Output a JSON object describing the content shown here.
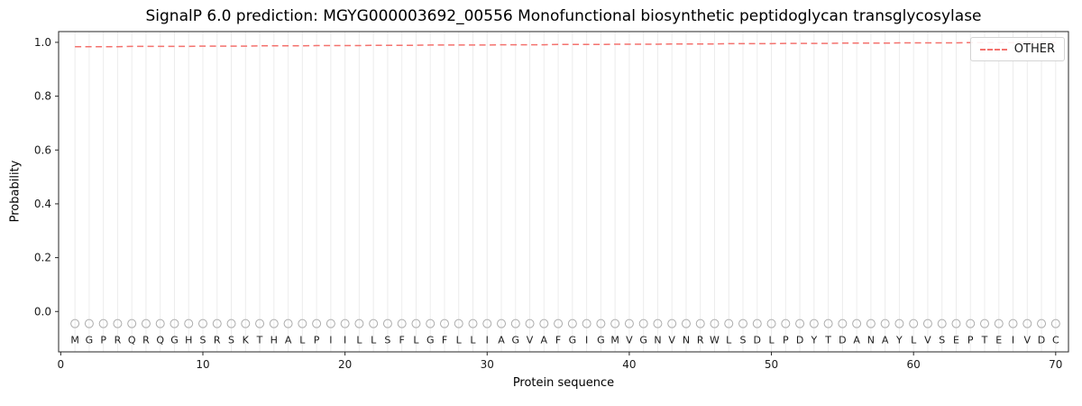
{
  "chart_data": {
    "type": "line",
    "title": "SignalP 6.0 prediction: MGYG000003692_00556 Monofunctional biosynthetic peptidoglycan transglycosylase",
    "xlabel": "Protein sequence",
    "ylabel": "Probability",
    "xlim": [
      -0.15,
      70.9
    ],
    "ylim": [
      -0.15,
      1.04
    ],
    "x_ticks": [
      0,
      10,
      20,
      30,
      40,
      50,
      60,
      70
    ],
    "y_ticks": [
      0.0,
      0.2,
      0.4,
      0.6,
      0.8,
      1.0
    ],
    "grid": "vertical-line-per-residue",
    "legend": {
      "label": "OTHER",
      "position": "upper right"
    },
    "colors": {
      "series_red": "#f4726e",
      "grid": "#ececec",
      "spine": "#262626",
      "tick_text": "#1a1a1a",
      "marker": "#adadad",
      "letter": "#1a1a1a"
    },
    "sequence": [
      "M",
      "G",
      "P",
      "R",
      "Q",
      "R",
      "Q",
      "G",
      "H",
      "S",
      "R",
      "S",
      "K",
      "T",
      "H",
      "A",
      "L",
      "P",
      "I",
      "I",
      "L",
      "L",
      "S",
      "F",
      "L",
      "G",
      "F",
      "L",
      "L",
      "I",
      "A",
      "G",
      "V",
      "A",
      "F",
      "G",
      "I",
      "G",
      "M",
      "V",
      "G",
      "N",
      "V",
      "N",
      "R",
      "W",
      "L",
      "S",
      "D",
      "L",
      "P",
      "D",
      "Y",
      "T",
      "D",
      "A",
      "N",
      "A",
      "Y",
      "L",
      "V",
      "S",
      "E",
      "P",
      "T",
      "E",
      "I",
      "V",
      "D",
      "C"
    ],
    "residue_markers": {
      "symbol": "open-circle",
      "y": -0.045
    },
    "sequence_label_y": -0.105,
    "series": [
      {
        "name": "OTHER",
        "style": "dashed",
        "color": "#f4726e",
        "x": [
          1,
          2,
          3,
          4,
          5,
          6,
          7,
          8,
          9,
          10,
          11,
          12,
          13,
          14,
          15,
          16,
          17,
          18,
          19,
          20,
          21,
          22,
          23,
          24,
          25,
          26,
          27,
          28,
          29,
          30,
          31,
          32,
          33,
          34,
          35,
          36,
          37,
          38,
          39,
          40,
          41,
          42,
          43,
          44,
          45,
          46,
          47,
          48,
          49,
          50,
          51,
          52,
          53,
          54,
          55,
          56,
          57,
          58,
          59,
          60,
          61,
          62,
          63,
          64,
          65,
          66,
          67,
          68,
          69,
          70
        ],
        "values": [
          0.984,
          0.984,
          0.984,
          0.984,
          0.985,
          0.985,
          0.985,
          0.985,
          0.985,
          0.986,
          0.986,
          0.986,
          0.986,
          0.987,
          0.987,
          0.987,
          0.987,
          0.988,
          0.988,
          0.988,
          0.988,
          0.989,
          0.989,
          0.989,
          0.989,
          0.99,
          0.99,
          0.99,
          0.99,
          0.99,
          0.991,
          0.991,
          0.991,
          0.991,
          0.992,
          0.992,
          0.992,
          0.992,
          0.993,
          0.993,
          0.993,
          0.993,
          0.994,
          0.994,
          0.994,
          0.994,
          0.995,
          0.995,
          0.995,
          0.995,
          0.996,
          0.996,
          0.996,
          0.996,
          0.997,
          0.997,
          0.997,
          0.997,
          0.998,
          0.998,
          0.998,
          0.998,
          0.998,
          0.999,
          0.999,
          0.999,
          0.999,
          0.999,
          0.999,
          0.999
        ]
      }
    ]
  }
}
